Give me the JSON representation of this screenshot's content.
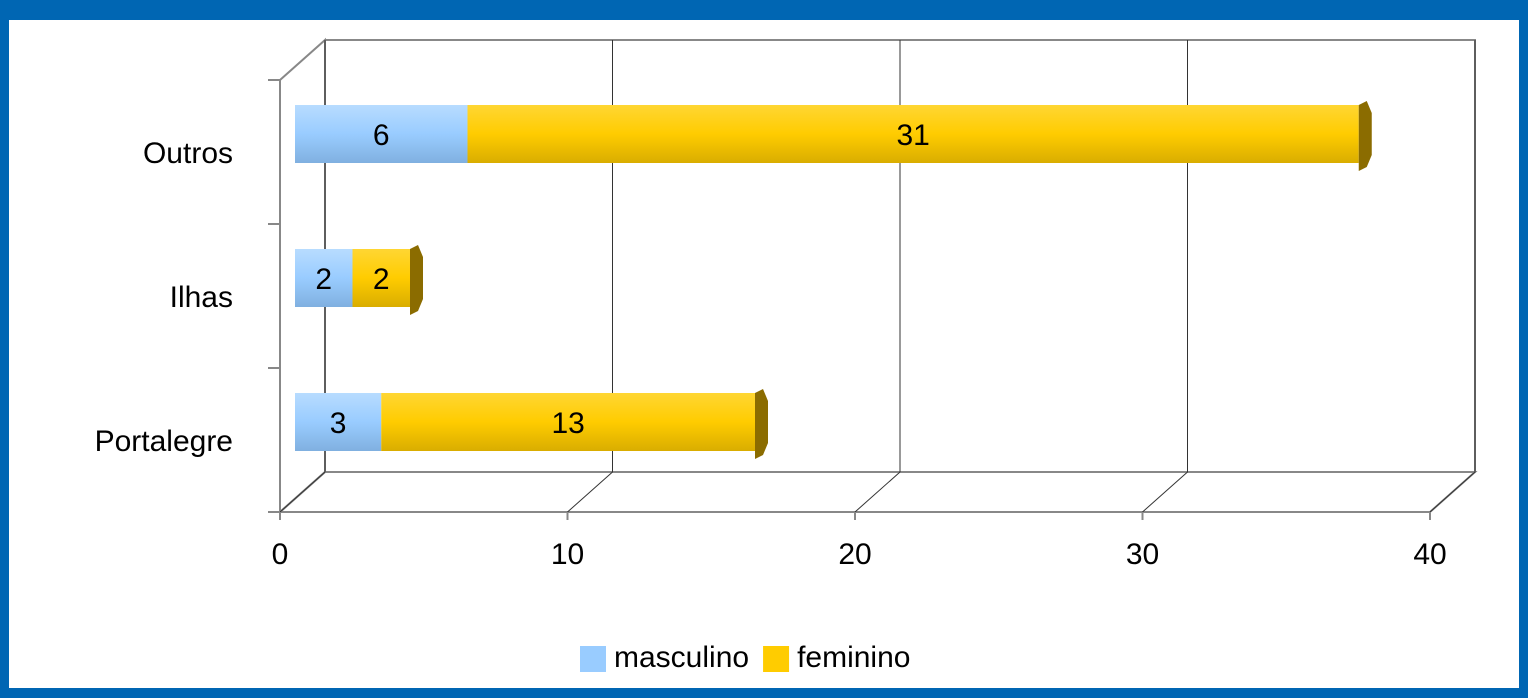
{
  "chart_data": {
    "type": "bar",
    "orientation": "horizontal",
    "stacked": true,
    "categories": [
      "Portalegre",
      "Ilhas",
      "Outros"
    ],
    "series": [
      {
        "name": "masculino",
        "color": "#99ccff",
        "values": [
          3,
          2,
          6
        ]
      },
      {
        "name": "feminino",
        "color": "#ffcc00",
        "values": [
          13,
          2,
          31
        ]
      }
    ],
    "xlim": [
      0,
      40
    ],
    "xticks": [
      0,
      10,
      20,
      30,
      40
    ],
    "grid": true,
    "legend": "bottom"
  }
}
